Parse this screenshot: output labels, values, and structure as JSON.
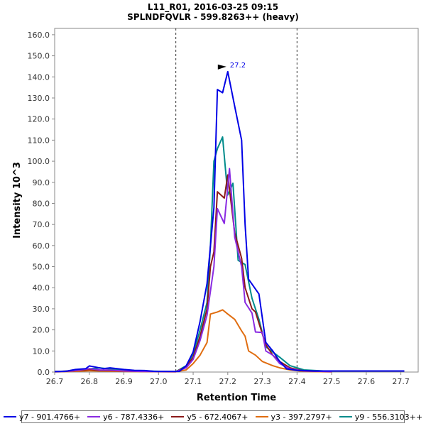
{
  "chart_data": {
    "type": "line",
    "title": "L11_R01, 2016-03-25 09:15",
    "subtitle": "SPLNDFQVLR - 599.8263++ (heavy)",
    "xlabel": "Retention Time",
    "ylabel": "Intensity 10^3",
    "xlim": [
      26.7,
      27.75
    ],
    "ylim": [
      0,
      163
    ],
    "x_ticks": [
      "26.7",
      "26.8",
      "26.9",
      "27.0",
      "27.1",
      "27.2",
      "27.3",
      "27.4",
      "27.5",
      "27.6",
      "27.7"
    ],
    "y_ticks": [
      "0.0",
      "10.0",
      "20.0",
      "30.0",
      "40.0",
      "50.0",
      "60.0",
      "70.0",
      "80.0",
      "90.0",
      "100.0",
      "110.0",
      "120.0",
      "130.0",
      "140.0",
      "150.0",
      "160.0"
    ],
    "vlines": [
      27.05,
      27.4
    ],
    "peak_annotation": {
      "x": 27.2,
      "y": 142.5,
      "label": "27.2"
    },
    "legend_position": "bottom",
    "series": [
      {
        "name": "y7 - 901.4766+",
        "color": "#0000e6",
        "points": [
          [
            26.7,
            0.2
          ],
          [
            26.73,
            0.3
          ],
          [
            26.76,
            1.2
          ],
          [
            26.79,
            1.6
          ],
          [
            26.8,
            2.9
          ],
          [
            26.82,
            2.3
          ],
          [
            26.84,
            1.6
          ],
          [
            26.86,
            2.0
          ],
          [
            26.88,
            1.6
          ],
          [
            26.9,
            1.2
          ],
          [
            26.93,
            0.8
          ],
          [
            26.96,
            0.7
          ],
          [
            26.99,
            0.3
          ],
          [
            27.02,
            0.3
          ],
          [
            27.06,
            0.3
          ],
          [
            27.08,
            3.0
          ],
          [
            27.1,
            9.5
          ],
          [
            27.12,
            24
          ],
          [
            27.14,
            42
          ],
          [
            27.16,
            78
          ],
          [
            27.17,
            134
          ],
          [
            27.185,
            132.5
          ],
          [
            27.2,
            142.5
          ],
          [
            27.22,
            126
          ],
          [
            27.24,
            110
          ],
          [
            27.25,
            70
          ],
          [
            27.26,
            44
          ],
          [
            27.29,
            37
          ],
          [
            27.31,
            14
          ],
          [
            27.33,
            10
          ],
          [
            27.35,
            5
          ],
          [
            27.37,
            1.5
          ],
          [
            27.4,
            0.8
          ],
          [
            27.45,
            0.5
          ],
          [
            27.5,
            0.5
          ],
          [
            27.6,
            0.5
          ],
          [
            27.71,
            0.5
          ]
        ]
      },
      {
        "name": "y6 - 787.4336+",
        "color": "#8a2be2",
        "points": [
          [
            26.7,
            0.2
          ],
          [
            26.75,
            0.5
          ],
          [
            26.8,
            1.6
          ],
          [
            26.83,
            1.0
          ],
          [
            26.86,
            0.9
          ],
          [
            26.9,
            0.5
          ],
          [
            26.95,
            0.3
          ],
          [
            27.05,
            0.2
          ],
          [
            27.08,
            2.0
          ],
          [
            27.1,
            6
          ],
          [
            27.12,
            15
          ],
          [
            27.14,
            27
          ],
          [
            27.16,
            50
          ],
          [
            27.17,
            77.5
          ],
          [
            27.19,
            70.5
          ],
          [
            27.205,
            96.5
          ],
          [
            27.22,
            64
          ],
          [
            27.24,
            50
          ],
          [
            27.25,
            33
          ],
          [
            27.27,
            28
          ],
          [
            27.28,
            19
          ],
          [
            27.3,
            18.8
          ],
          [
            27.31,
            10
          ],
          [
            27.33,
            8
          ],
          [
            27.35,
            4
          ],
          [
            27.38,
            1.5
          ],
          [
            27.42,
            0.5
          ],
          [
            27.5,
            0.2
          ]
        ]
      },
      {
        "name": "y5 - 672.4067+",
        "color": "#8b1a1a",
        "points": [
          [
            26.7,
            0.2
          ],
          [
            26.75,
            0.5
          ],
          [
            26.8,
            1.2
          ],
          [
            26.83,
            0.8
          ],
          [
            26.86,
            0.7
          ],
          [
            26.9,
            0.5
          ],
          [
            26.95,
            0.3
          ],
          [
            27.05,
            0.2
          ],
          [
            27.08,
            2.5
          ],
          [
            27.1,
            7
          ],
          [
            27.12,
            17
          ],
          [
            27.14,
            30
          ],
          [
            27.15,
            50
          ],
          [
            27.16,
            57
          ],
          [
            27.17,
            85.5
          ],
          [
            27.19,
            82.5
          ],
          [
            27.2,
            93.5
          ],
          [
            27.22,
            66
          ],
          [
            27.24,
            54
          ],
          [
            27.25,
            40
          ],
          [
            27.27,
            30
          ],
          [
            27.28,
            28.5
          ],
          [
            27.3,
            18
          ],
          [
            27.31,
            13
          ],
          [
            27.33,
            8
          ],
          [
            27.35,
            5
          ],
          [
            27.38,
            2
          ],
          [
            27.42,
            0.5
          ],
          [
            27.5,
            0.2
          ]
        ]
      },
      {
        "name": "y3 - 397.2797+",
        "color": "#e06d10",
        "points": [
          [
            26.7,
            0.1
          ],
          [
            26.75,
            0.3
          ],
          [
            26.8,
            0.6
          ],
          [
            26.85,
            0.4
          ],
          [
            26.9,
            0.3
          ],
          [
            27.05,
            0.1
          ],
          [
            27.08,
            1.0
          ],
          [
            27.1,
            4
          ],
          [
            27.12,
            8
          ],
          [
            27.14,
            14
          ],
          [
            27.15,
            27.5
          ],
          [
            27.17,
            28.5
          ],
          [
            27.185,
            29.5
          ],
          [
            27.2,
            27.5
          ],
          [
            27.22,
            25
          ],
          [
            27.24,
            19.5
          ],
          [
            27.25,
            17
          ],
          [
            27.26,
            10
          ],
          [
            27.28,
            8
          ],
          [
            27.3,
            5
          ],
          [
            27.33,
            3
          ],
          [
            27.35,
            2
          ],
          [
            27.38,
            1
          ],
          [
            27.42,
            0.3
          ],
          [
            27.5,
            0.1
          ]
        ]
      },
      {
        "name": "y9 - 556.3103++",
        "color": "#008b8b",
        "points": [
          [
            26.7,
            0.2
          ],
          [
            26.75,
            0.6
          ],
          [
            26.8,
            1.5
          ],
          [
            26.83,
            2.0
          ],
          [
            26.86,
            1.4
          ],
          [
            26.9,
            0.8
          ],
          [
            26.95,
            0.5
          ],
          [
            27.05,
            0.2
          ],
          [
            27.08,
            3
          ],
          [
            27.1,
            8.5
          ],
          [
            27.12,
            20
          ],
          [
            27.14,
            33
          ],
          [
            27.15,
            60
          ],
          [
            27.16,
            100
          ],
          [
            27.17,
            106
          ],
          [
            27.185,
            111.5
          ],
          [
            27.2,
            84
          ],
          [
            27.215,
            89.5
          ],
          [
            27.23,
            53
          ],
          [
            27.25,
            51
          ],
          [
            27.27,
            35
          ],
          [
            27.29,
            25
          ],
          [
            27.31,
            12
          ],
          [
            27.33,
            9.5
          ],
          [
            27.35,
            7
          ],
          [
            27.38,
            3
          ],
          [
            27.42,
            1
          ],
          [
            27.5,
            0.3
          ]
        ]
      }
    ]
  }
}
